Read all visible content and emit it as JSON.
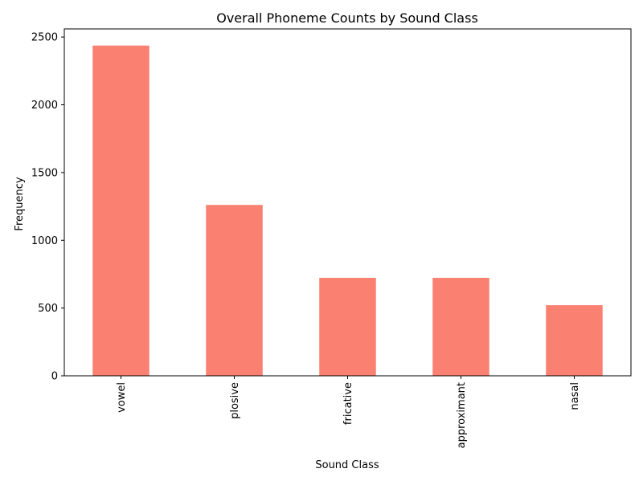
{
  "chart_data": {
    "type": "bar",
    "title": "Overall Phoneme Counts by Sound Class",
    "xlabel": "Sound Class",
    "ylabel": "Frequency",
    "categories": [
      "vowel",
      "plosive",
      "fricative",
      "approximant",
      "nasal"
    ],
    "values": [
      2437,
      1261,
      723,
      723,
      521
    ],
    "ylim": [
      0,
      2560
    ],
    "yticks": [
      0,
      500,
      1000,
      1500,
      2000,
      2500
    ],
    "grid": false,
    "bar_color": "#fa8072",
    "x_tick_rotation": "vertical"
  }
}
